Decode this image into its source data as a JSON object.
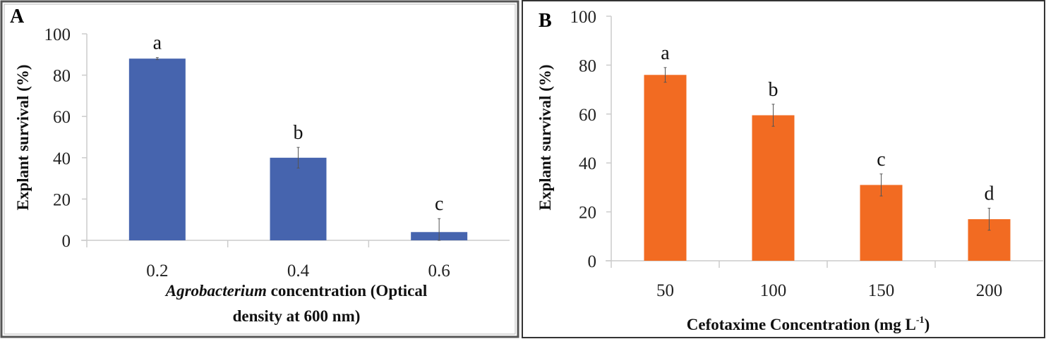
{
  "chart_data": [
    {
      "panel_label": "A",
      "type": "bar",
      "title": "",
      "categories": [
        "0.2",
        "0.4",
        "0.6"
      ],
      "values": [
        88,
        40,
        4
      ],
      "errors": [
        0.5,
        5,
        6.5
      ],
      "significance_letters": [
        "a",
        "b",
        "c"
      ],
      "ylabel": "Explant survival (%)",
      "xlabel_italic": "Agrobacterium",
      "xlabel_line1": " concentration (Optical",
      "xlabel_line2": "density at 600 nm)",
      "ylim": [
        0,
        100
      ],
      "yticks": [
        "0",
        "20",
        "40",
        "60",
        "80",
        "100"
      ],
      "color": "#4664AE",
      "grid": false,
      "legend": "none"
    },
    {
      "panel_label": "B",
      "type": "bar",
      "title": "",
      "categories": [
        "50",
        "100",
        "150",
        "200"
      ],
      "values": [
        76,
        59.5,
        31,
        17
      ],
      "errors": [
        3,
        4.5,
        4.5,
        4.5
      ],
      "significance_letters": [
        "a",
        "b",
        "c",
        "d"
      ],
      "ylabel": "Explant survival (%)",
      "xlabel": "Cefotaxime Concentration (mg L",
      "xlabel_sup": "-1",
      "xlabel_end": ")",
      "ylim": [
        0,
        100
      ],
      "yticks": [
        "0",
        "20",
        "40",
        "60",
        "80",
        "100"
      ],
      "color": "#F26B22",
      "grid": false,
      "legend": "none"
    }
  ]
}
